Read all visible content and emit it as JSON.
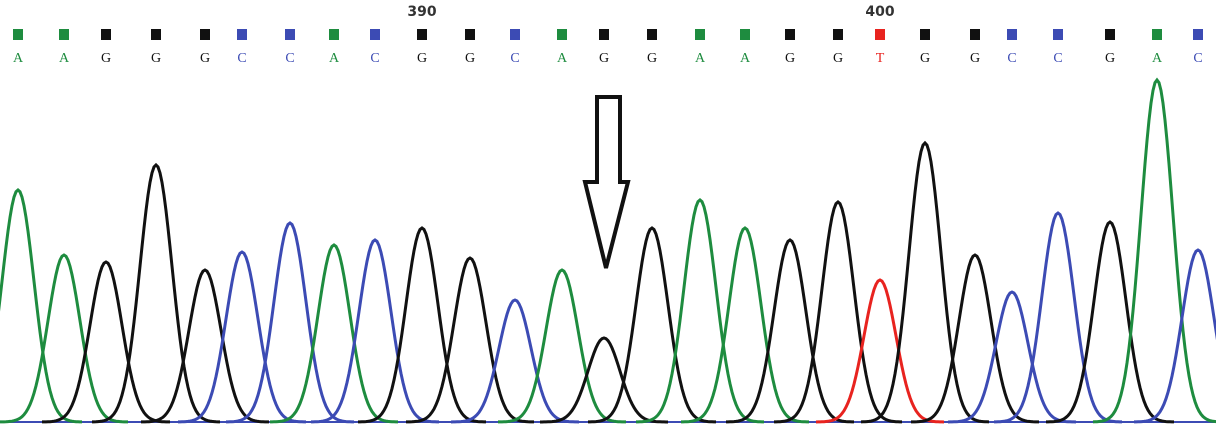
{
  "sequence": {
    "colors": {
      "A": "#1e8c3f",
      "C": "#3c4bb4",
      "G": "#111111",
      "T": "#e8231f"
    },
    "bases": [
      {
        "base": "A",
        "signal": 232
      },
      {
        "base": "A",
        "signal": 167
      },
      {
        "base": "G",
        "signal": 160
      },
      {
        "base": "G",
        "signal": 257
      },
      {
        "base": "G",
        "signal": 152
      },
      {
        "base": "C",
        "signal": 170
      },
      {
        "base": "C",
        "signal": 199
      },
      {
        "base": "A",
        "signal": 177
      },
      {
        "base": "C",
        "signal": 182
      },
      {
        "base": "G",
        "signal": 194,
        "position": "390"
      },
      {
        "base": "G",
        "signal": 164
      },
      {
        "base": "C",
        "signal": 122
      },
      {
        "base": "A",
        "signal": 152
      },
      {
        "base": "G",
        "signal": 84
      },
      {
        "base": "G",
        "signal": 194
      },
      {
        "base": "A",
        "signal": 222
      },
      {
        "base": "A",
        "signal": 194
      },
      {
        "base": "G",
        "signal": 182
      },
      {
        "base": "G",
        "signal": 220
      },
      {
        "base": "T",
        "signal": 142,
        "position": "400"
      },
      {
        "base": "G",
        "signal": 279
      },
      {
        "base": "G",
        "signal": 167
      },
      {
        "base": "C",
        "signal": 130
      },
      {
        "base": "C",
        "signal": 209
      },
      {
        "base": "G",
        "signal": 200
      },
      {
        "base": "A",
        "signal": 342
      },
      {
        "base": "C",
        "signal": 172
      }
    ]
  }
}
